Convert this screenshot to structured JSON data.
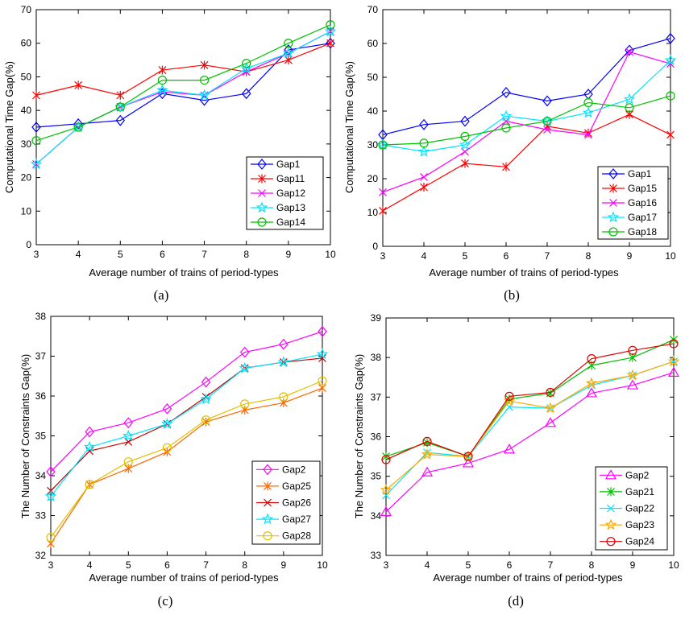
{
  "chart_data": [
    {
      "type": "line",
      "panel_label": "(a)",
      "xlabel": "Average number of trains of period-types",
      "ylabel": "Computational Time Gap(%)",
      "x": [
        3,
        4,
        5,
        6,
        7,
        8,
        9,
        10
      ],
      "xlim": [
        3,
        10
      ],
      "ylim": [
        0,
        70
      ],
      "yticks": [
        0,
        10,
        20,
        30,
        40,
        50,
        60,
        70
      ],
      "legend_position": "bottom-right",
      "series": [
        {
          "name": "Gap1",
          "color": "#0000ff",
          "marker": "diamond",
          "values": [
            35,
            36,
            37,
            45,
            43,
            45,
            58,
            60
          ]
        },
        {
          "name": "Gap11",
          "color": "#ff0000",
          "marker": "asterisk",
          "values": [
            44.5,
            47.5,
            44.5,
            52,
            53.5,
            51.5,
            55,
            60
          ]
        },
        {
          "name": "Gap12",
          "color": "#ff00ff",
          "marker": "x",
          "values": [
            24,
            35,
            41,
            45.5,
            44.5,
            51.5,
            57,
            63.5
          ]
        },
        {
          "name": "Gap13",
          "color": "#00e5ff",
          "marker": "star",
          "values": [
            24,
            35,
            41,
            46,
            44.5,
            52.5,
            57,
            63.5
          ]
        },
        {
          "name": "Gap14",
          "color": "#00c000",
          "marker": "circle",
          "values": [
            31,
            35,
            41,
            49,
            49,
            54,
            60,
            65.5
          ]
        }
      ]
    },
    {
      "type": "line",
      "panel_label": "(b)",
      "xlabel": "Average number of trains of period-types",
      "ylabel": "Computational Time Gap(%)",
      "x": [
        3,
        4,
        5,
        6,
        7,
        8,
        9,
        10
      ],
      "xlim": [
        3,
        10
      ],
      "ylim": [
        0,
        70
      ],
      "yticks": [
        0,
        10,
        20,
        30,
        40,
        50,
        60,
        70
      ],
      "legend_position": "bottom-right",
      "series": [
        {
          "name": "Gap1",
          "color": "#0000ff",
          "marker": "diamond",
          "values": [
            33,
            36,
            37,
            45.5,
            43,
            45,
            58,
            61.5
          ]
        },
        {
          "name": "Gap15",
          "color": "#ff0000",
          "marker": "asterisk",
          "values": [
            10.5,
            17.5,
            24.5,
            23.5,
            35.5,
            33.5,
            39,
            33
          ]
        },
        {
          "name": "Gap16",
          "color": "#ff00ff",
          "marker": "x",
          "values": [
            16,
            20.5,
            28,
            37,
            34.5,
            33,
            57.5,
            54
          ]
        },
        {
          "name": "Gap17",
          "color": "#00e5ff",
          "marker": "star",
          "values": [
            30,
            28,
            30,
            38.5,
            37,
            39.5,
            43.5,
            55
          ]
        },
        {
          "name": "Gap18",
          "color": "#00c000",
          "marker": "circle",
          "values": [
            30,
            30.5,
            32.5,
            35,
            37,
            42.5,
            41,
            44.5
          ]
        }
      ]
    },
    {
      "type": "line",
      "panel_label": "(c)",
      "xlabel": "Average number of trains of period-types",
      "ylabel": "The Number of Constraints Gap(%)",
      "x": [
        3,
        4,
        5,
        6,
        7,
        8,
        9,
        10
      ],
      "xlim": [
        3,
        10
      ],
      "ylim": [
        32,
        38
      ],
      "yticks": [
        32,
        33,
        34,
        35,
        36,
        37,
        38
      ],
      "legend_position": "bottom-right",
      "series": [
        {
          "name": "Gap2",
          "color": "#ff00ff",
          "marker": "diamond",
          "values": [
            34.1,
            35.1,
            35.33,
            35.68,
            36.35,
            37.1,
            37.3,
            37.62
          ]
        },
        {
          "name": "Gap25",
          "color": "#ff6600",
          "marker": "asterisk",
          "values": [
            32.3,
            33.78,
            34.18,
            34.6,
            35.35,
            35.65,
            35.83,
            36.2
          ]
        },
        {
          "name": "Gap26",
          "color": "#cc0000",
          "marker": "x",
          "values": [
            33.62,
            34.62,
            34.85,
            35.3,
            35.98,
            36.7,
            36.85,
            36.95
          ]
        },
        {
          "name": "Gap27",
          "color": "#00e5ff",
          "marker": "star",
          "values": [
            33.48,
            34.72,
            35.0,
            35.3,
            35.92,
            36.7,
            36.85,
            37.05
          ]
        },
        {
          "name": "Gap28",
          "color": "#e0c000",
          "marker": "circle",
          "values": [
            32.45,
            33.78,
            34.35,
            34.7,
            35.4,
            35.8,
            35.98,
            36.38
          ]
        }
      ]
    },
    {
      "type": "line",
      "panel_label": "(d)",
      "xlabel": "Average number of trains of period-types",
      "ylabel": "The Number of Constraints Gap(%)",
      "x": [
        3,
        4,
        5,
        6,
        7,
        8,
        9,
        10
      ],
      "xlim": [
        3,
        10
      ],
      "ylim": [
        33,
        39
      ],
      "yticks": [
        33,
        34,
        35,
        36,
        37,
        38,
        39
      ],
      "legend_position": "bottom-right",
      "series": [
        {
          "name": "Gap2",
          "color": "#ff00ff",
          "marker": "triangle",
          "values": [
            34.1,
            35.1,
            35.33,
            35.68,
            36.35,
            37.1,
            37.3,
            37.62
          ]
        },
        {
          "name": "Gap21",
          "color": "#00c000",
          "marker": "asterisk",
          "values": [
            35.5,
            35.85,
            35.5,
            36.95,
            37.1,
            37.8,
            38.0,
            38.45
          ]
        },
        {
          "name": "Gap22",
          "color": "#00e5ff",
          "marker": "x",
          "values": [
            34.52,
            35.6,
            35.5,
            36.75,
            36.72,
            37.3,
            37.55,
            37.9
          ]
        },
        {
          "name": "Gap23",
          "color": "#ffaa00",
          "marker": "star",
          "values": [
            34.65,
            35.55,
            35.5,
            36.9,
            36.72,
            37.35,
            37.55,
            37.9
          ]
        },
        {
          "name": "Gap24",
          "color": "#dd0000",
          "marker": "circle",
          "values": [
            35.42,
            35.88,
            35.5,
            37.02,
            37.12,
            37.97,
            38.18,
            38.35
          ]
        }
      ]
    }
  ]
}
